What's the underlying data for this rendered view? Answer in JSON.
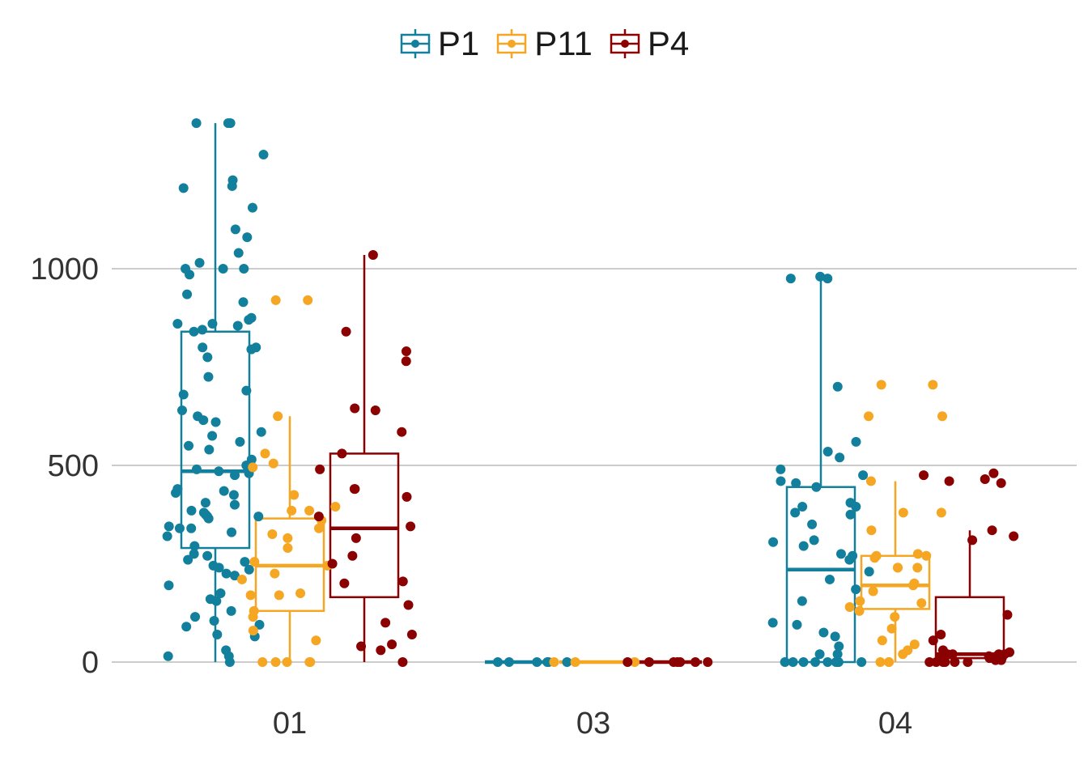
{
  "chart_data": {
    "type": "box",
    "title": "",
    "xlabel": "",
    "ylabel": "",
    "categories": [
      "01",
      "03",
      "04"
    ],
    "ylim": [
      -40,
      1420
    ],
    "yticks": [
      0,
      500,
      1000
    ],
    "grid": "horizontal major",
    "legend_position": "top",
    "series": [
      {
        "name": "P1",
        "color": "#12809c",
        "boxes": [
          {
            "category": "01",
            "min": 0,
            "q1": 290,
            "median": 485,
            "q3": 840,
            "max": 1370
          },
          {
            "category": "03",
            "min": 0,
            "q1": 0,
            "median": 0,
            "q3": 0,
            "max": 0
          },
          {
            "category": "04",
            "min": 0,
            "q1": 0,
            "median": 235,
            "q3": 445,
            "max": 980
          }
        ],
        "points": [
          {
            "category": "01",
            "values": [
              1370,
              1370,
              1370,
              1290,
              1225,
              1210,
              1205,
              1155,
              1100,
              1080,
              1040,
              1015,
              1000,
              1000,
              1000,
              985,
              935,
              915,
              875,
              870,
              860,
              860,
              855,
              845,
              840,
              800,
              800,
              795,
              775,
              725,
              690,
              680,
              640,
              625,
              615,
              610,
              585,
              575,
              560,
              550,
              540,
              515,
              500,
              490,
              485,
              480,
              475,
              440,
              435,
              430,
              425,
              405,
              400,
              385,
              380,
              375,
              370,
              370,
              365,
              345,
              340,
              340,
              330,
              320,
              295,
              275,
              270,
              260,
              255,
              245,
              240,
              235,
              225,
              220,
              195,
              175,
              160,
              155,
              130,
              115,
              105,
              95,
              90,
              70,
              65,
              30,
              15,
              15,
              0
            ]
          },
          {
            "category": "03",
            "values": [
              0,
              0,
              0,
              0,
              0,
              0
            ]
          },
          {
            "category": "04",
            "values": [
              980,
              975,
              975,
              700,
              560,
              535,
              520,
              490,
              475,
              460,
              455,
              445,
              405,
              395,
              395,
              380,
              375,
              350,
              310,
              305,
              295,
              275,
              270,
              260,
              230,
              210,
              185,
              155,
              100,
              95,
              75,
              65,
              40,
              20,
              20,
              0,
              0,
              0,
              0,
              0,
              0,
              0,
              0,
              0
            ]
          }
        ]
      },
      {
        "name": "P11",
        "color": "#f5a623",
        "boxes": [
          {
            "category": "01",
            "min": 0,
            "q1": 130,
            "median": 245,
            "q3": 365,
            "max": 625
          },
          {
            "category": "03",
            "min": 0,
            "q1": 0,
            "median": 0,
            "q3": 0,
            "max": 0
          },
          {
            "category": "04",
            "min": 0,
            "q1": 135,
            "median": 195,
            "q3": 270,
            "max": 460
          }
        ],
        "points": [
          {
            "category": "01",
            "values": [
              920,
              920,
              625,
              530,
              505,
              495,
              425,
              395,
              385,
              385,
              360,
              340,
              325,
              315,
              290,
              255,
              245,
              225,
              210,
              175,
              170,
              170,
              130,
              115,
              80,
              55,
              0,
              0,
              0,
              0,
              0
            ]
          },
          {
            "category": "03",
            "values": [
              0,
              0,
              0
            ]
          },
          {
            "category": "04",
            "values": [
              705,
              705,
              625,
              625,
              460,
              380,
              380,
              335,
              275,
              270,
              270,
              265,
              240,
              240,
              240,
              200,
              195,
              180,
              155,
              150,
              140,
              130,
              115,
              85,
              55,
              45,
              30,
              20,
              0,
              0,
              0
            ]
          }
        ]
      },
      {
        "name": "P4",
        "color": "#8b0000",
        "boxes": [
          {
            "category": "01",
            "min": 0,
            "q1": 165,
            "median": 340,
            "q3": 530,
            "max": 1035
          },
          {
            "category": "03",
            "min": 0,
            "q1": 0,
            "median": 0,
            "q3": 0,
            "max": 0
          },
          {
            "category": "04",
            "min": 0,
            "q1": 10,
            "median": 20,
            "q3": 165,
            "max": 335
          }
        ],
        "points": [
          {
            "category": "01",
            "values": [
              1035,
              840,
              790,
              765,
              640,
              645,
              585,
              530,
              490,
              440,
              440,
              420,
              345,
              370,
              315,
              270,
              250,
              205,
              200,
              145,
              100,
              70,
              45,
              40,
              30,
              0
            ]
          },
          {
            "category": "03",
            "values": [
              0,
              0,
              0,
              0,
              0,
              0,
              0
            ]
          },
          {
            "category": "04",
            "values": [
              480,
              475,
              465,
              460,
              455,
              335,
              320,
              310,
              120,
              70,
              55,
              30,
              25,
              20,
              20,
              20,
              20,
              15,
              15,
              10,
              10,
              10,
              5,
              5,
              0,
              0,
              0,
              0,
              0,
              0
            ]
          }
        ]
      }
    ]
  }
}
